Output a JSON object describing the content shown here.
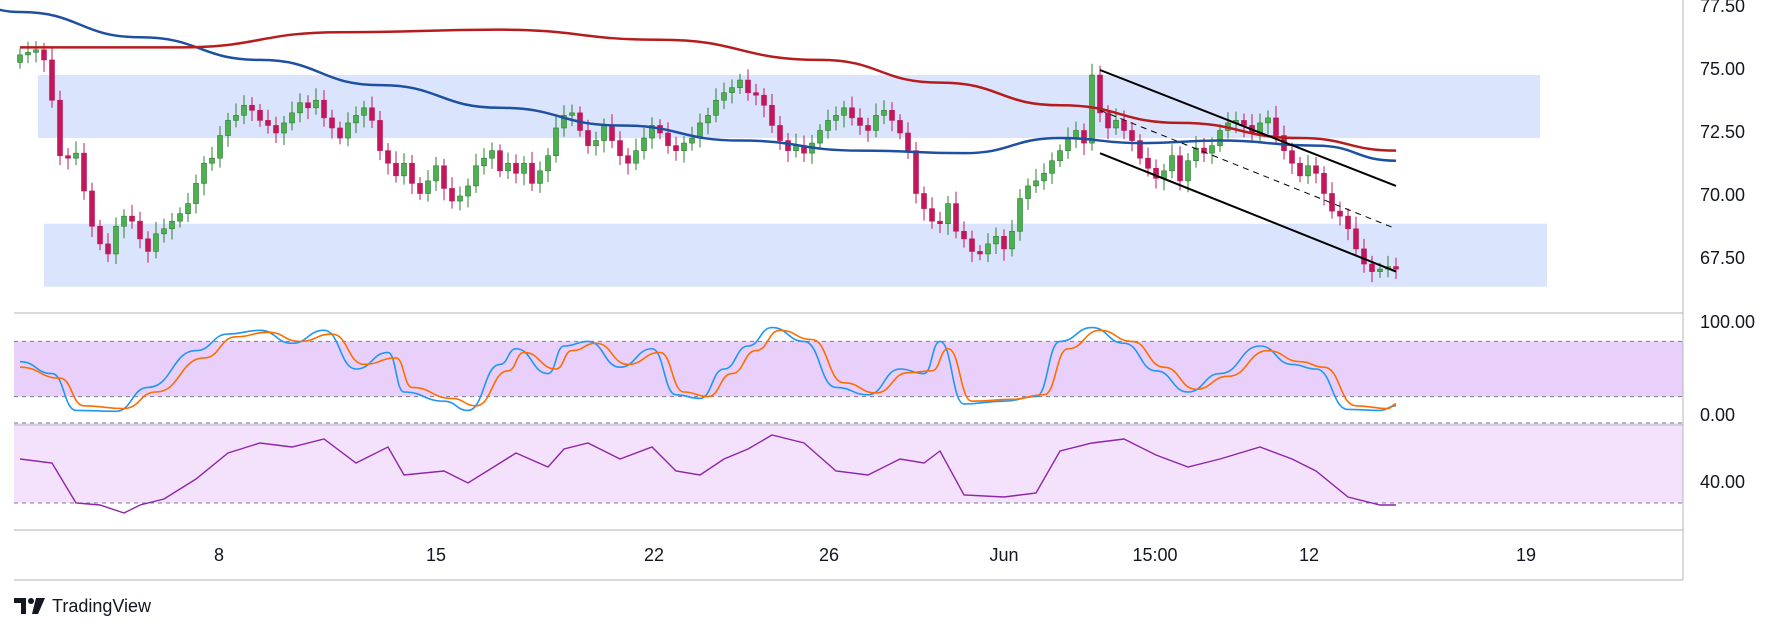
{
  "branding": {
    "logo_text": "TradingView"
  },
  "colors": {
    "bull": "#26a69a",
    "bull_fill": "#4caf50",
    "bear": "#c2185b",
    "sma_fast": "#1e50a2",
    "sma_slow": "#b71c1c",
    "zone": "#dbe4fd",
    "stoch_band": "#e9d0fb",
    "rsi_band": "#f4e2fc",
    "stoch_k": "#2196f3",
    "stoch_d": "#ff6d00",
    "rsi": "#8e24aa",
    "channel": "#000000"
  },
  "chart_data": [
    {
      "type": "candlestick",
      "panel": "price",
      "x_ticks": [
        "8",
        "15",
        "22",
        "26",
        "Jun",
        "15:00",
        "12",
        "19"
      ],
      "y_ticks": [
        "77.50",
        "75.00",
        "72.50",
        "70.00",
        "67.50"
      ],
      "ylim": [
        66.6,
        77.6
      ],
      "zones": [
        {
          "from": 72.3,
          "to": 74.8
        },
        {
          "from": 66.4,
          "to": 68.9
        }
      ],
      "closes": [
        75.6,
        75.7,
        75.8,
        75.4,
        73.8,
        71.6,
        71.5,
        71.7,
        70.2,
        68.8,
        68.1,
        67.7,
        68.8,
        69.2,
        69.0,
        68.3,
        67.8,
        68.5,
        68.7,
        69.0,
        69.3,
        69.7,
        70.5,
        71.3,
        71.5,
        72.4,
        73.0,
        73.2,
        73.6,
        73.4,
        73.0,
        72.8,
        72.5,
        72.9,
        73.3,
        73.7,
        73.5,
        73.8,
        73.1,
        72.7,
        72.3,
        72.9,
        73.2,
        73.5,
        73.0,
        71.8,
        71.3,
        70.8,
        71.3,
        70.5,
        70.1,
        70.6,
        71.2,
        70.3,
        69.8,
        70.0,
        70.4,
        71.2,
        71.5,
        71.8,
        71.0,
        71.3,
        70.9,
        71.3,
        70.5,
        71.0,
        71.6,
        72.7,
        73.2,
        73.3,
        72.6,
        72.0,
        72.2,
        72.8,
        72.2,
        71.6,
        71.3,
        71.8,
        72.3,
        72.8,
        72.5,
        72.0,
        71.8,
        72.1,
        72.3,
        72.9,
        73.2,
        73.8,
        74.1,
        74.3,
        74.6,
        74.1,
        74.0,
        73.6,
        72.8,
        72.2,
        71.8,
        72.0,
        71.7,
        72.1,
        72.6,
        73.0,
        73.2,
        73.5,
        73.1,
        72.8,
        72.6,
        73.2,
        73.4,
        73.0,
        72.5,
        71.8,
        70.1,
        69.5,
        69.0,
        68.9,
        69.7,
        68.6,
        68.3,
        67.8,
        67.7,
        68.1,
        68.4,
        67.9,
        68.6,
        69.9,
        70.4,
        70.6,
        70.9,
        71.4,
        71.8,
        72.3,
        72.6,
        72.1,
        74.8,
        73.3,
        72.7,
        73.0,
        72.6,
        72.2,
        71.5,
        71.1,
        70.7,
        71.0,
        71.6,
        70.6,
        71.4,
        71.9,
        71.7,
        72.0,
        72.6,
        72.9,
        73.0,
        72.8,
        72.5,
        72.9,
        73.1,
        72.4,
        71.8,
        71.3,
        70.8,
        71.2,
        70.9,
        70.1,
        69.4,
        69.2,
        68.7,
        67.9,
        67.3,
        67.0,
        67.1,
        67.2,
        67.1
      ]
    },
    {
      "type": "line",
      "panel": "price",
      "series": [
        {
          "key": "sma_fast",
          "values": [
            {
              "i": -12,
              "v": 78.5
            },
            {
              "i": 0,
              "v": 77.3
            },
            {
              "i": 15,
              "v": 76.3
            },
            {
              "i": 30,
              "v": 75.4
            },
            {
              "i": 45,
              "v": 74.4
            },
            {
              "i": 60,
              "v": 73.5
            },
            {
              "i": 75,
              "v": 72.8
            },
            {
              "i": 90,
              "v": 72.2
            },
            {
              "i": 105,
              "v": 71.8
            },
            {
              "i": 118,
              "v": 71.7
            },
            {
              "i": 130,
              "v": 72.3
            },
            {
              "i": 140,
              "v": 72.1
            },
            {
              "i": 150,
              "v": 72.2
            },
            {
              "i": 162,
              "v": 72.0
            },
            {
              "i": 172,
              "v": 71.4
            }
          ]
        },
        {
          "key": "sma_slow",
          "values": [
            {
              "i": 0,
              "v": 75.9
            },
            {
              "i": 20,
              "v": 75.9
            },
            {
              "i": 40,
              "v": 76.5
            },
            {
              "i": 60,
              "v": 76.6
            },
            {
              "i": 80,
              "v": 76.2
            },
            {
              "i": 100,
              "v": 75.4
            },
            {
              "i": 115,
              "v": 74.5
            },
            {
              "i": 130,
              "v": 73.6
            },
            {
              "i": 145,
              "v": 72.9
            },
            {
              "i": 160,
              "v": 72.3
            },
            {
              "i": 172,
              "v": 71.8
            }
          ]
        }
      ]
    },
    {
      "type": "line",
      "panel": "price_channel",
      "series": [
        {
          "key": "upper",
          "values": [
            {
              "i": 135,
              "v": 75.0
            },
            {
              "i": 172,
              "v": 70.4
            }
          ]
        },
        {
          "key": "lower",
          "values": [
            {
              "i": 135,
              "v": 71.7
            },
            {
              "i": 172,
              "v": 67.0
            }
          ]
        },
        {
          "key": "mid",
          "dashed": true,
          "values": [
            {
              "i": 135,
              "v": 73.4
            },
            {
              "i": 172,
              "v": 68.7
            }
          ]
        }
      ]
    },
    {
      "type": "line",
      "panel": "stochastic",
      "y_ticks": [
        "100.00",
        "0.00"
      ],
      "band": [
        20,
        80
      ],
      "ylim": [
        0,
        100
      ],
      "series": [
        {
          "key": "k",
          "values": [
            {
              "i": 0,
              "v": 58
            },
            {
              "i": 4,
              "v": 45
            },
            {
              "i": 7,
              "v": 5
            },
            {
              "i": 12,
              "v": 4
            },
            {
              "i": 16,
              "v": 30
            },
            {
              "i": 22,
              "v": 70
            },
            {
              "i": 26,
              "v": 88
            },
            {
              "i": 30,
              "v": 92
            },
            {
              "i": 34,
              "v": 78
            },
            {
              "i": 38,
              "v": 92
            },
            {
              "i": 42,
              "v": 50
            },
            {
              "i": 46,
              "v": 68
            },
            {
              "i": 48,
              "v": 25
            },
            {
              "i": 53,
              "v": 15
            },
            {
              "i": 56,
              "v": 5
            },
            {
              "i": 60,
              "v": 55
            },
            {
              "i": 62,
              "v": 72
            },
            {
              "i": 66,
              "v": 45
            },
            {
              "i": 68,
              "v": 75
            },
            {
              "i": 71,
              "v": 80
            },
            {
              "i": 75,
              "v": 52
            },
            {
              "i": 79,
              "v": 72
            },
            {
              "i": 82,
              "v": 22
            },
            {
              "i": 85,
              "v": 18
            },
            {
              "i": 88,
              "v": 50
            },
            {
              "i": 91,
              "v": 75
            },
            {
              "i": 94,
              "v": 95
            },
            {
              "i": 98,
              "v": 80
            },
            {
              "i": 102,
              "v": 30
            },
            {
              "i": 106,
              "v": 22
            },
            {
              "i": 110,
              "v": 50
            },
            {
              "i": 113,
              "v": 45
            },
            {
              "i": 115,
              "v": 80
            },
            {
              "i": 118,
              "v": 12
            },
            {
              "i": 123,
              "v": 15
            },
            {
              "i": 127,
              "v": 20
            },
            {
              "i": 130,
              "v": 80
            },
            {
              "i": 134,
              "v": 95
            },
            {
              "i": 138,
              "v": 78
            },
            {
              "i": 142,
              "v": 48
            },
            {
              "i": 146,
              "v": 25
            },
            {
              "i": 150,
              "v": 45
            },
            {
              "i": 155,
              "v": 75
            },
            {
              "i": 159,
              "v": 55
            },
            {
              "i": 162,
              "v": 50
            },
            {
              "i": 166,
              "v": 6
            },
            {
              "i": 170,
              "v": 5
            },
            {
              "i": 172,
              "v": 10
            }
          ]
        },
        {
          "key": "d",
          "values": [
            {
              "i": 0,
              "v": 52
            },
            {
              "i": 5,
              "v": 40
            },
            {
              "i": 8,
              "v": 10
            },
            {
              "i": 13,
              "v": 7
            },
            {
              "i": 17,
              "v": 25
            },
            {
              "i": 23,
              "v": 62
            },
            {
              "i": 27,
              "v": 85
            },
            {
              "i": 31,
              "v": 90
            },
            {
              "i": 35,
              "v": 80
            },
            {
              "i": 39,
              "v": 88
            },
            {
              "i": 43,
              "v": 55
            },
            {
              "i": 47,
              "v": 62
            },
            {
              "i": 49,
              "v": 30
            },
            {
              "i": 54,
              "v": 18
            },
            {
              "i": 57,
              "v": 10
            },
            {
              "i": 61,
              "v": 48
            },
            {
              "i": 63,
              "v": 68
            },
            {
              "i": 67,
              "v": 50
            },
            {
              "i": 69,
              "v": 70
            },
            {
              "i": 72,
              "v": 78
            },
            {
              "i": 76,
              "v": 55
            },
            {
              "i": 80,
              "v": 68
            },
            {
              "i": 83,
              "v": 25
            },
            {
              "i": 86,
              "v": 20
            },
            {
              "i": 89,
              "v": 45
            },
            {
              "i": 92,
              "v": 70
            },
            {
              "i": 95,
              "v": 92
            },
            {
              "i": 99,
              "v": 82
            },
            {
              "i": 103,
              "v": 35
            },
            {
              "i": 107,
              "v": 24
            },
            {
              "i": 111,
              "v": 46
            },
            {
              "i": 114,
              "v": 48
            },
            {
              "i": 116,
              "v": 72
            },
            {
              "i": 119,
              "v": 15
            },
            {
              "i": 124,
              "v": 17
            },
            {
              "i": 128,
              "v": 22
            },
            {
              "i": 131,
              "v": 72
            },
            {
              "i": 135,
              "v": 92
            },
            {
              "i": 139,
              "v": 80
            },
            {
              "i": 143,
              "v": 52
            },
            {
              "i": 147,
              "v": 28
            },
            {
              "i": 151,
              "v": 42
            },
            {
              "i": 156,
              "v": 70
            },
            {
              "i": 160,
              "v": 58
            },
            {
              "i": 163,
              "v": 52
            },
            {
              "i": 167,
              "v": 10
            },
            {
              "i": 171,
              "v": 7
            },
            {
              "i": 172,
              "v": 12
            }
          ]
        }
      ]
    },
    {
      "type": "line",
      "panel": "rsi",
      "y_ticks": [
        "40.00"
      ],
      "band": [
        30,
        70
      ],
      "ylim": [
        24,
        76
      ],
      "series": [
        {
          "key": "rsi",
          "values": [
            {
              "i": 0,
              "v": 52
            },
            {
              "i": 4,
              "v": 50
            },
            {
              "i": 7,
              "v": 30
            },
            {
              "i": 10,
              "v": 29
            },
            {
              "i": 13,
              "v": 25
            },
            {
              "i": 15,
              "v": 29
            },
            {
              "i": 18,
              "v": 32
            },
            {
              "i": 22,
              "v": 42
            },
            {
              "i": 26,
              "v": 55
            },
            {
              "i": 30,
              "v": 60
            },
            {
              "i": 34,
              "v": 58
            },
            {
              "i": 38,
              "v": 62
            },
            {
              "i": 42,
              "v": 50
            },
            {
              "i": 46,
              "v": 58
            },
            {
              "i": 48,
              "v": 44
            },
            {
              "i": 53,
              "v": 46
            },
            {
              "i": 56,
              "v": 40
            },
            {
              "i": 60,
              "v": 50
            },
            {
              "i": 62,
              "v": 55
            },
            {
              "i": 66,
              "v": 48
            },
            {
              "i": 68,
              "v": 57
            },
            {
              "i": 71,
              "v": 60
            },
            {
              "i": 75,
              "v": 52
            },
            {
              "i": 79,
              "v": 58
            },
            {
              "i": 82,
              "v": 46
            },
            {
              "i": 85,
              "v": 44
            },
            {
              "i": 88,
              "v": 52
            },
            {
              "i": 91,
              "v": 57
            },
            {
              "i": 94,
              "v": 64
            },
            {
              "i": 98,
              "v": 60
            },
            {
              "i": 102,
              "v": 46
            },
            {
              "i": 106,
              "v": 44
            },
            {
              "i": 110,
              "v": 52
            },
            {
              "i": 113,
              "v": 50
            },
            {
              "i": 115,
              "v": 56
            },
            {
              "i": 118,
              "v": 34
            },
            {
              "i": 123,
              "v": 33
            },
            {
              "i": 127,
              "v": 35
            },
            {
              "i": 130,
              "v": 56
            },
            {
              "i": 134,
              "v": 60
            },
            {
              "i": 138,
              "v": 62
            },
            {
              "i": 142,
              "v": 54
            },
            {
              "i": 146,
              "v": 48
            },
            {
              "i": 150,
              "v": 52
            },
            {
              "i": 155,
              "v": 58
            },
            {
              "i": 159,
              "v": 52
            },
            {
              "i": 162,
              "v": 46
            },
            {
              "i": 166,
              "v": 33
            },
            {
              "i": 170,
              "v": 29
            },
            {
              "i": 172,
              "v": 29
            }
          ]
        }
      ]
    }
  ]
}
